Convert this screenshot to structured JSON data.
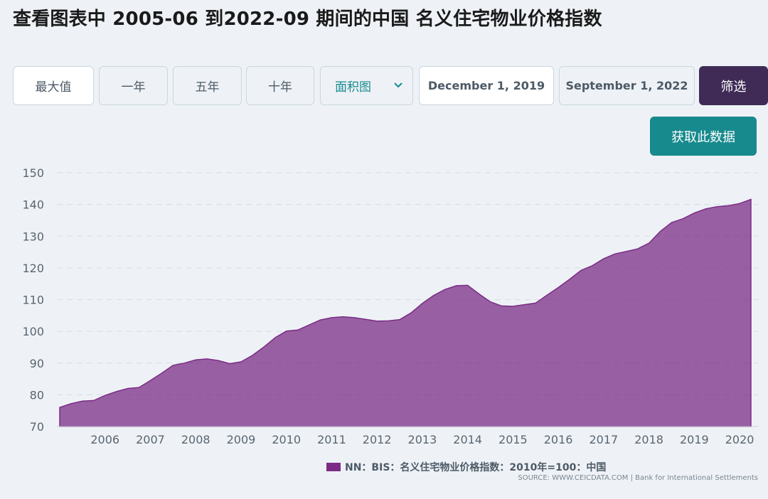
{
  "header": {
    "title": "查看图表中 2005-06 到2022-09 期间的中国 名义住宅物业价格指数"
  },
  "controls": {
    "range_buttons": [
      "最大值",
      "一年",
      "五年",
      "十年"
    ],
    "chart_type": "面积图",
    "start_date": "December 1, 2019",
    "end_date": "September 1, 2022",
    "filter_label": "筛选",
    "get_data_label": "获取此数据"
  },
  "legend": {
    "label": "NN：BIS：名义住宅物业价格指数：2010年=100：中国"
  },
  "source": "SOURCE: WWW.CEICDATA.COM | Bank for International Settlements",
  "colors": {
    "area": "#7b2d86",
    "accent": "#178a8e",
    "filter": "#3f2b55"
  },
  "chart_data": {
    "type": "area",
    "ylim": [
      70,
      150
    ],
    "yticks": [
      70,
      80,
      90,
      100,
      110,
      120,
      130,
      140,
      150
    ],
    "xticks": [
      "2006",
      "2007",
      "2008",
      "2009",
      "2010",
      "2011",
      "2012",
      "2013",
      "2014",
      "2015",
      "2016",
      "2017",
      "2018",
      "2019",
      "2020"
    ],
    "x": [
      2005.5,
      2005.75,
      2006.0,
      2006.25,
      2006.5,
      2006.75,
      2007.0,
      2007.25,
      2007.5,
      2007.75,
      2008.0,
      2008.25,
      2008.5,
      2008.75,
      2009.0,
      2009.25,
      2009.5,
      2009.75,
      2010.0,
      2010.25,
      2010.5,
      2010.75,
      2011.0,
      2011.25,
      2011.5,
      2011.75,
      2012.0,
      2012.25,
      2012.5,
      2012.75,
      2013.0,
      2013.25,
      2013.5,
      2013.75,
      2014.0,
      2014.25,
      2014.5,
      2014.75,
      2015.0,
      2015.25,
      2015.5,
      2015.75,
      2016.0,
      2016.25,
      2016.5,
      2016.75,
      2017.0,
      2017.25,
      2017.5,
      2017.75,
      2018.0,
      2018.25,
      2018.5,
      2018.75,
      2019.0,
      2019.25,
      2019.5,
      2019.75,
      2020.0,
      2020.25,
      2020.5,
      2020.75
    ],
    "series": [
      {
        "name": "NN：BIS：名义住宅物业价格指数：2010年=100：中国",
        "values": [
          76,
          77.2,
          78,
          78.2,
          79.8,
          81,
          82,
          82.3,
          84.5,
          86.8,
          89.3,
          90,
          91,
          91.3,
          90.8,
          89.8,
          90.4,
          92.4,
          95,
          98,
          100.1,
          100.4,
          102,
          103.6,
          104.3,
          104.6,
          104.3,
          103.8,
          103.2,
          103.3,
          103.7,
          105.8,
          108.8,
          111.3,
          113.2,
          114.4,
          114.5,
          111.8,
          109.3,
          108,
          107.9,
          108.4,
          108.9,
          111.4,
          113.8,
          116.4,
          119.2,
          120.7,
          122.9,
          124.4,
          125.2,
          126,
          127.8,
          131.5,
          134.3,
          135.5,
          137.3,
          138.6,
          139.3,
          139.6,
          140.3,
          141.6
        ]
      }
    ]
  }
}
